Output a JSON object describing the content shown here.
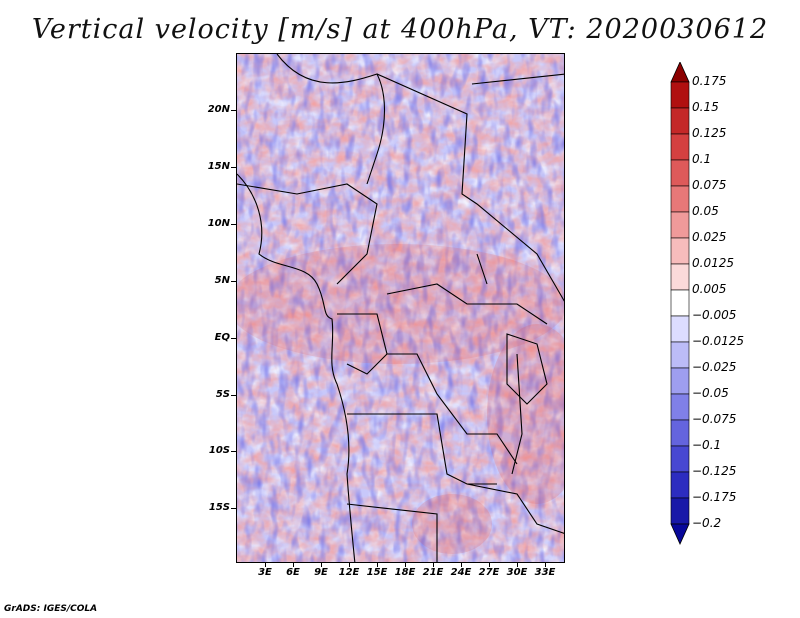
{
  "title": "Vertical velocity [m/s] at 400hPa, VT: 2020030612",
  "footer": "GrADS: IGES/COLA",
  "map": {
    "lat_labels": [
      "20N",
      "15N",
      "10N",
      "5N",
      "EQ",
      "5S",
      "10S",
      "15S"
    ],
    "lon_labels": [
      "3E",
      "6E",
      "9E",
      "12E",
      "15E",
      "18E",
      "21E",
      "24E",
      "27E",
      "30E",
      "33E"
    ]
  },
  "colorbar": {
    "labels": [
      "0.175",
      "0.15",
      "0.125",
      "0.1",
      "0.075",
      "0.05",
      "0.025",
      "0.0125",
      "0.005",
      "−0.005",
      "−0.0125",
      "−0.025",
      "−0.05",
      "−0.075",
      "−0.1",
      "−0.125",
      "−0.175",
      "−0.2"
    ],
    "colors": [
      "#8b0000",
      "#b01010",
      "#c42828",
      "#d44040",
      "#de5a5a",
      "#e87878",
      "#f09a9a",
      "#f7bcbc",
      "#fbdada",
      "#ffffff",
      "#dcdcff",
      "#bcbcf7",
      "#9e9ef0",
      "#8080e8",
      "#6464de",
      "#4848d2",
      "#2c2cc0",
      "#1818a8",
      "#08089a"
    ]
  }
}
